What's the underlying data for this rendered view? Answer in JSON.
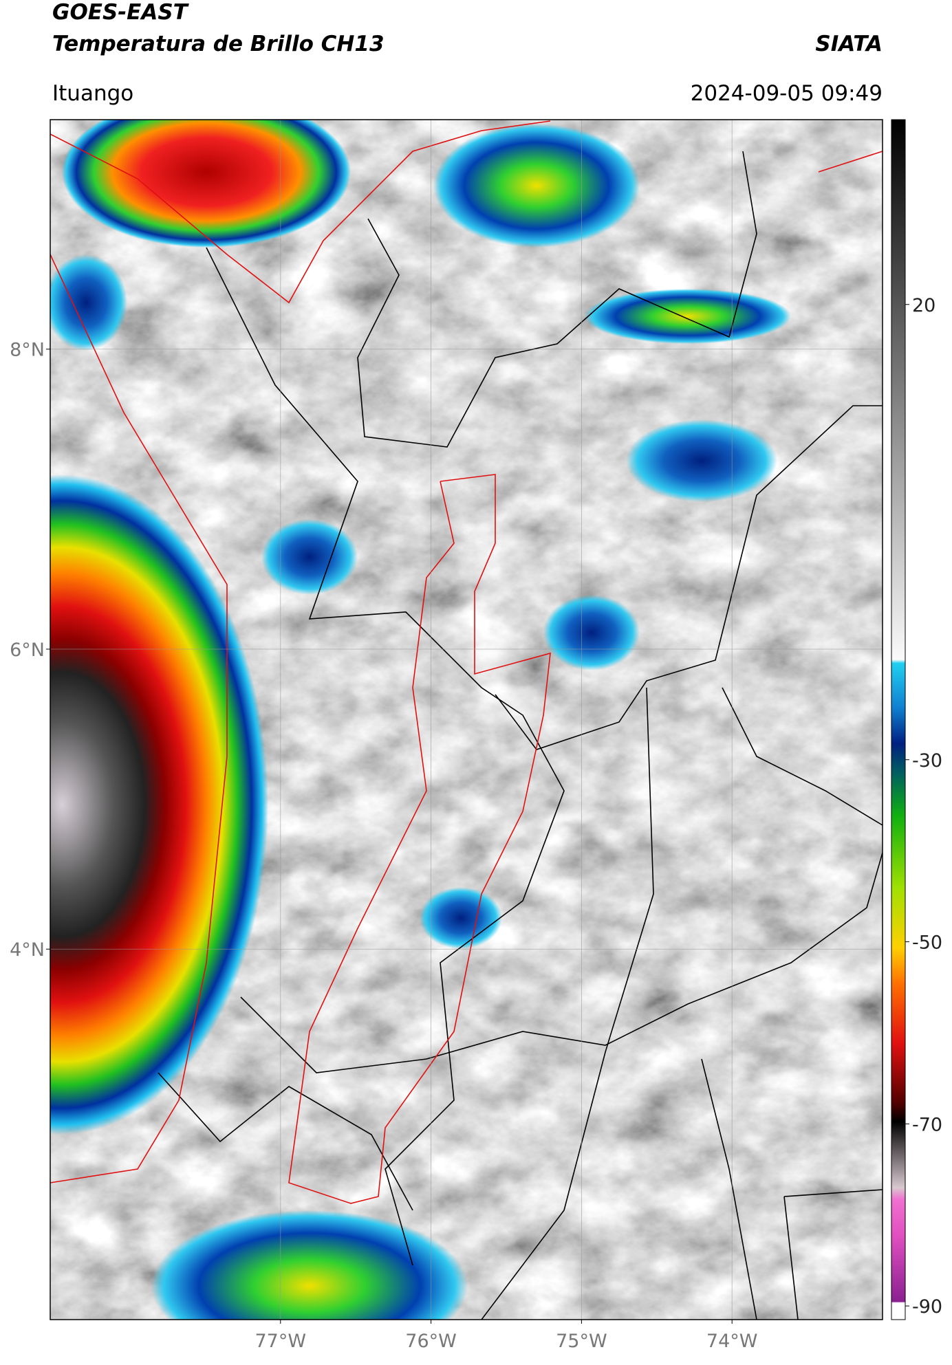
{
  "header": {
    "title": "GOES-EAST",
    "subtitle": "Temperatura de Brillo CH13",
    "source": "SIATA",
    "location": "Ituango",
    "datetime": "2024-09-05 09:49"
  },
  "map": {
    "xlim": [
      -78.53,
      -73.0
    ],
    "ylim": [
      1.53,
      9.53
    ],
    "xticks": [
      {
        "value": -77,
        "label": "77°W"
      },
      {
        "value": -76,
        "label": "76°W"
      },
      {
        "value": -75,
        "label": "75°W"
      },
      {
        "value": -74,
        "label": "74°W"
      }
    ],
    "yticks": [
      {
        "value": 4,
        "label": "4°N"
      },
      {
        "value": 6,
        "label": "6°N"
      },
      {
        "value": 8,
        "label": "8°N"
      }
    ],
    "grid": true
  },
  "colorbar": {
    "clim": [
      -91.5,
      40.3
    ],
    "ticks": [
      20,
      -30,
      -50,
      -70,
      -90
    ]
  }
}
